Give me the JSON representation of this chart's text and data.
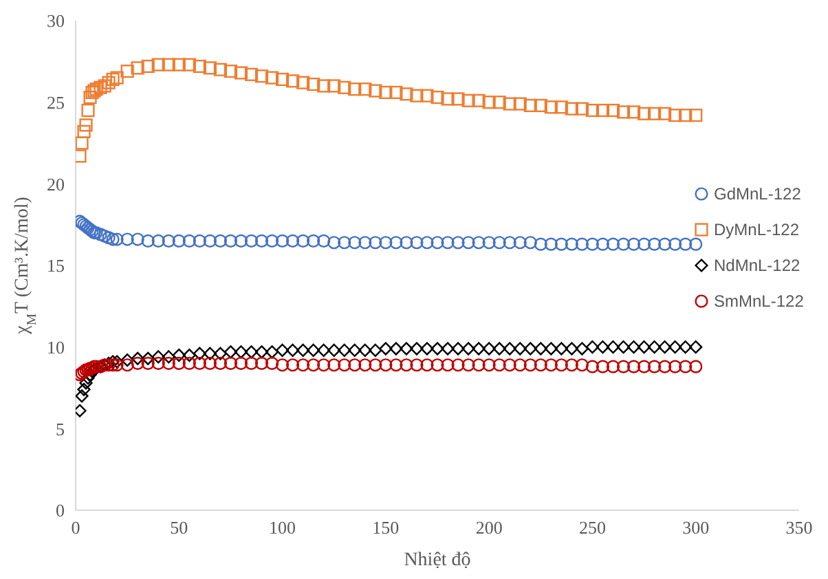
{
  "chart_data": {
    "type": "scatter",
    "xlabel": "Nhiệt độ",
    "ylabel": "χ$_{M}$T (Cm³.K/mol)",
    "x": [
      2,
      3,
      4,
      5,
      6,
      7,
      8,
      9,
      10,
      12,
      14,
      16,
      18,
      20,
      25,
      30,
      35,
      40,
      45,
      50,
      55,
      60,
      65,
      70,
      75,
      80,
      85,
      90,
      95,
      100,
      105,
      110,
      115,
      120,
      125,
      130,
      135,
      140,
      145,
      150,
      155,
      160,
      165,
      170,
      175,
      180,
      185,
      190,
      195,
      200,
      205,
      210,
      215,
      220,
      225,
      230,
      235,
      240,
      245,
      250,
      255,
      260,
      265,
      270,
      275,
      280,
      285,
      290,
      295,
      300
    ],
    "series": [
      {
        "name": "GdMnL-122",
        "color": "#4472c4",
        "marker": "circle",
        "values": [
          17.7,
          17.6,
          17.5,
          17.4,
          17.3,
          17.2,
          17.1,
          17.0,
          17.0,
          16.9,
          16.8,
          16.7,
          16.6,
          16.6,
          16.6,
          16.6,
          16.5,
          16.5,
          16.5,
          16.5,
          16.5,
          16.5,
          16.5,
          16.5,
          16.5,
          16.5,
          16.5,
          16.5,
          16.5,
          16.5,
          16.5,
          16.5,
          16.5,
          16.5,
          16.4,
          16.4,
          16.4,
          16.4,
          16.4,
          16.4,
          16.4,
          16.4,
          16.4,
          16.4,
          16.4,
          16.4,
          16.4,
          16.4,
          16.4,
          16.4,
          16.4,
          16.4,
          16.4,
          16.4,
          16.3,
          16.3,
          16.3,
          16.3,
          16.3,
          16.3,
          16.3,
          16.3,
          16.3,
          16.3,
          16.3,
          16.3,
          16.3,
          16.3,
          16.3,
          16.3
        ]
      },
      {
        "name": "DyMnL-122",
        "color": "#ed7d31",
        "marker": "square",
        "values": [
          21.7,
          22.5,
          23.2,
          23.6,
          24.5,
          25.3,
          25.6,
          25.7,
          25.8,
          25.9,
          26.0,
          26.2,
          26.4,
          26.5,
          26.9,
          27.1,
          27.2,
          27.3,
          27.3,
          27.3,
          27.3,
          27.2,
          27.1,
          27.0,
          26.9,
          26.8,
          26.7,
          26.6,
          26.5,
          26.4,
          26.3,
          26.2,
          26.1,
          26.0,
          26.0,
          25.9,
          25.8,
          25.8,
          25.7,
          25.6,
          25.6,
          25.5,
          25.4,
          25.4,
          25.3,
          25.2,
          25.2,
          25.1,
          25.1,
          25.0,
          25.0,
          24.9,
          24.9,
          24.8,
          24.8,
          24.7,
          24.7,
          24.6,
          24.6,
          24.5,
          24.5,
          24.5,
          24.4,
          24.4,
          24.3,
          24.3,
          24.3,
          24.2,
          24.2,
          24.2
        ]
      },
      {
        "name": "NdMnL-122",
        "color": "#000000",
        "marker": "diamond",
        "values": [
          6.1,
          7.0,
          7.4,
          7.8,
          8.1,
          8.3,
          8.5,
          8.6,
          8.7,
          8.8,
          8.9,
          9.0,
          9.1,
          9.1,
          9.2,
          9.3,
          9.3,
          9.4,
          9.4,
          9.5,
          9.5,
          9.6,
          9.6,
          9.6,
          9.7,
          9.7,
          9.7,
          9.7,
          9.7,
          9.8,
          9.8,
          9.8,
          9.8,
          9.8,
          9.8,
          9.8,
          9.8,
          9.8,
          9.8,
          9.9,
          9.9,
          9.9,
          9.9,
          9.9,
          9.9,
          9.9,
          9.9,
          9.9,
          9.9,
          9.9,
          9.9,
          9.9,
          9.9,
          9.9,
          9.9,
          9.9,
          9.9,
          9.9,
          9.9,
          10.0,
          10.0,
          10.0,
          10.0,
          10.0,
          10.0,
          10.0,
          10.0,
          10.0,
          10.0,
          10.0
        ]
      },
      {
        "name": "SmMnL-122",
        "color": "#c00000",
        "marker": "circle",
        "values": [
          8.3,
          8.4,
          8.5,
          8.6,
          8.6,
          8.7,
          8.7,
          8.8,
          8.8,
          8.8,
          8.9,
          8.9,
          8.9,
          8.9,
          8.9,
          9.0,
          9.0,
          9.0,
          9.0,
          9.0,
          9.0,
          9.0,
          9.0,
          9.0,
          9.0,
          9.0,
          9.0,
          9.0,
          9.0,
          8.9,
          8.9,
          8.9,
          8.9,
          8.9,
          8.9,
          8.9,
          8.9,
          8.9,
          8.9,
          8.9,
          8.9,
          8.9,
          8.9,
          8.9,
          8.9,
          8.9,
          8.9,
          8.9,
          8.9,
          8.9,
          8.9,
          8.9,
          8.9,
          8.9,
          8.9,
          8.9,
          8.9,
          8.9,
          8.9,
          8.8,
          8.8,
          8.8,
          8.8,
          8.8,
          8.8,
          8.8,
          8.8,
          8.8,
          8.8,
          8.8
        ]
      }
    ],
    "xlim": [
      0,
      350
    ],
    "xticks": [
      0,
      50,
      100,
      150,
      200,
      250,
      300,
      350
    ],
    "ylim": [
      0,
      30
    ],
    "yticks": [
      0,
      5,
      10,
      15,
      20,
      25,
      30
    ],
    "legend": "right"
  }
}
